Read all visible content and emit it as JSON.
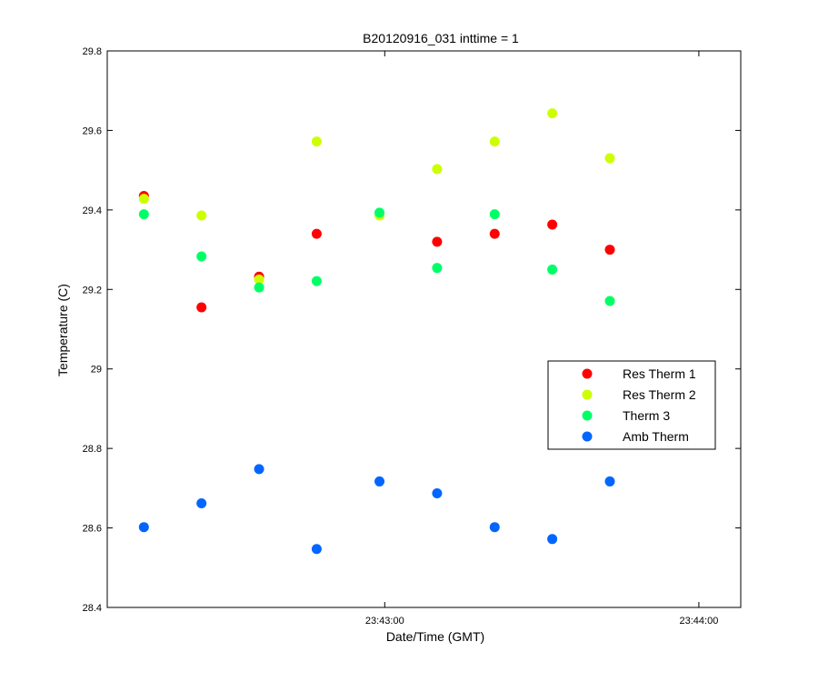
{
  "chart_data": {
    "type": "scatter",
    "title": "B20120916_031 inttime = 1",
    "xlabel": "Date/Time (GMT)",
    "ylabel": "Temperature (C)",
    "xlim": [
      "23:42:07",
      "23:44:08"
    ],
    "ylim": [
      28.4,
      29.8
    ],
    "x_ticks": [
      "23:43:00",
      "23:44:00"
    ],
    "y_ticks": [
      "28.4",
      "28.6",
      "28.8",
      "29",
      "29.2",
      "29.4",
      "29.6",
      "29.8"
    ],
    "x": [
      "23:42:14",
      "23:42:25",
      "23:42:36",
      "23:42:47",
      "23:42:59",
      "23:43:10",
      "23:43:21",
      "23:43:32",
      "23:43:43"
    ],
    "legend_position": "right",
    "series": [
      {
        "name": "Res Therm 1",
        "color": "#ff0000",
        "values": [
          29.435,
          29.155,
          29.232,
          29.34,
          null,
          29.32,
          29.34,
          29.363,
          29.3
        ]
      },
      {
        "name": "Res Therm 2",
        "color": "#ccff00",
        "values": [
          29.428,
          29.386,
          29.225,
          29.572,
          29.386,
          29.503,
          29.572,
          29.643,
          29.53
        ]
      },
      {
        "name": "Therm 3",
        "color": "#00ff66",
        "values": [
          29.389,
          29.283,
          29.205,
          29.221,
          29.393,
          29.254,
          29.389,
          29.25,
          29.171
        ]
      },
      {
        "name": "Amb Therm",
        "color": "#0066ff",
        "values": [
          28.602,
          28.662,
          28.748,
          28.547,
          28.717,
          28.687,
          28.602,
          28.572,
          28.717
        ]
      }
    ]
  }
}
